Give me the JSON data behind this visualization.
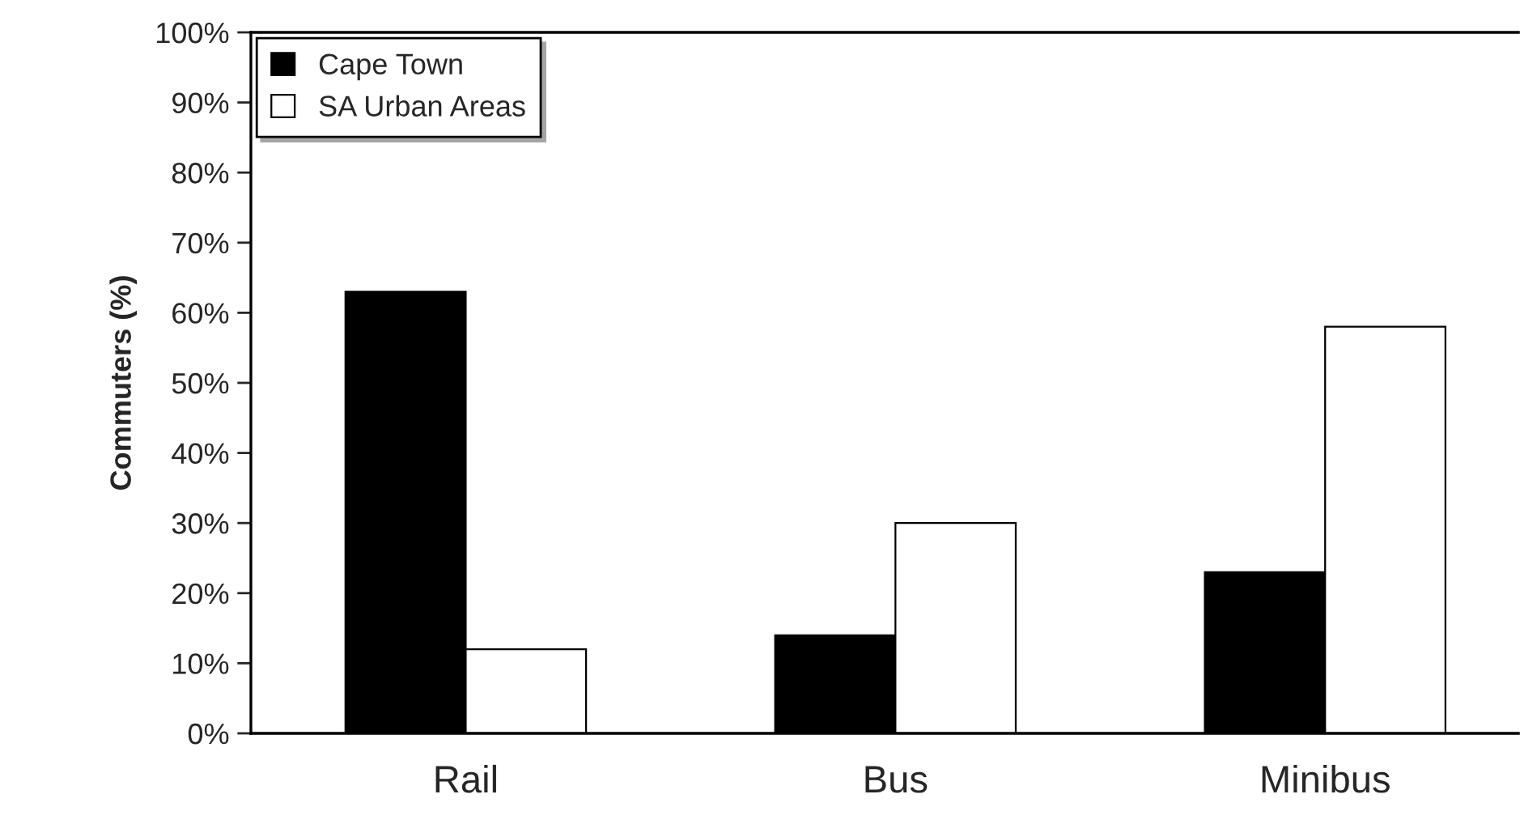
{
  "chart_data": {
    "type": "bar",
    "ylabel": "Commuters (%)",
    "categories": [
      "Rail",
      "Bus",
      "Minibus"
    ],
    "series": [
      {
        "name": "Cape Town",
        "color": "#000000",
        "values": [
          63,
          14,
          23
        ]
      },
      {
        "name": "SA Urban Areas",
        "color": "#ffffff",
        "values": [
          12,
          30,
          58
        ]
      }
    ],
    "ylim": [
      0,
      100
    ],
    "yticks": [
      {
        "value": 0,
        "label": "0%"
      },
      {
        "value": 10,
        "label": "10%"
      },
      {
        "value": 20,
        "label": "20%"
      },
      {
        "value": 30,
        "label": "30%"
      },
      {
        "value": 40,
        "label": "40%"
      },
      {
        "value": 50,
        "label": "50%"
      },
      {
        "value": 60,
        "label": "60%"
      },
      {
        "value": 70,
        "label": "70%"
      },
      {
        "value": 80,
        "label": "80%"
      },
      {
        "value": 90,
        "label": "90%"
      },
      {
        "value": 100,
        "label": "100%"
      }
    ],
    "grid": false,
    "legend": "top left"
  }
}
